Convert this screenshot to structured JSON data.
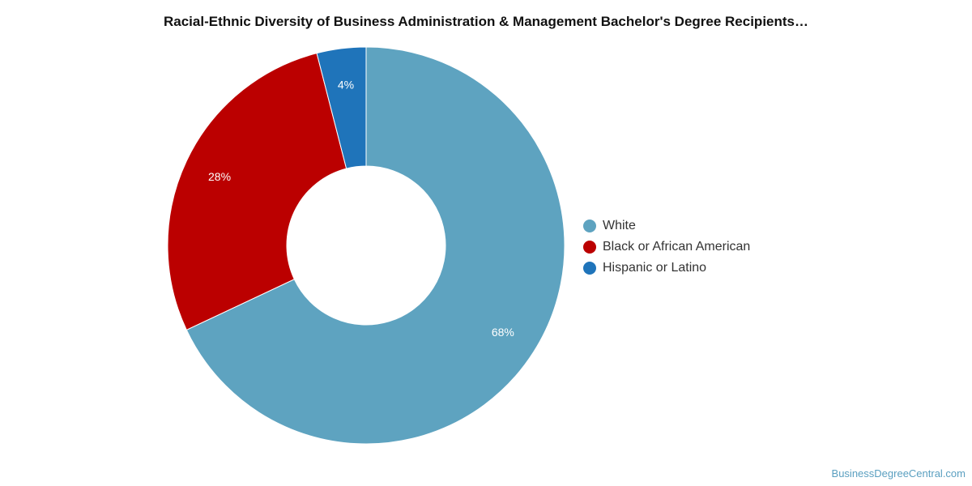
{
  "chart_data": {
    "type": "pie",
    "variant": "donut",
    "title": "Racial-Ethnic Diversity of Business Administration & Management Bachelor's Degree Recipients…",
    "slices": [
      {
        "label": "White",
        "value": 68,
        "value_label": "68%",
        "color": "#5ea3c0"
      },
      {
        "label": "Black or African American",
        "value": 28,
        "value_label": "28%",
        "color": "#bb0000"
      },
      {
        "label": "Hispanic or Latino",
        "value": 4,
        "value_label": "4%",
        "color": "#1f74ba"
      }
    ],
    "legend_position": "right"
  },
  "credit": "BusinessDegreeCentral.com"
}
